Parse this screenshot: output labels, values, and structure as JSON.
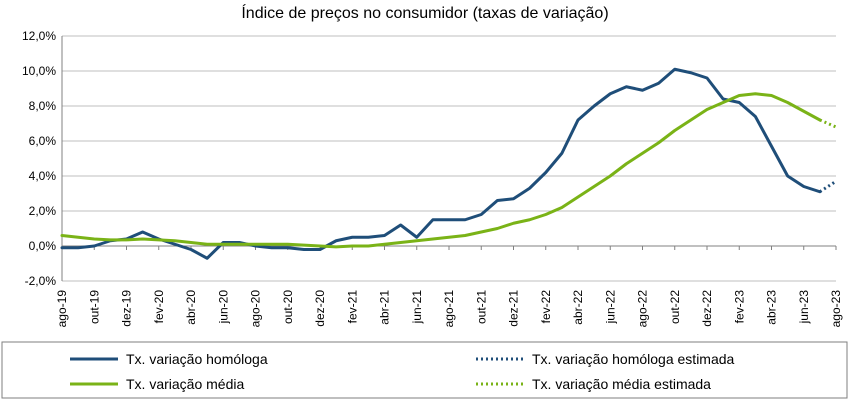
{
  "chart_data": {
    "type": "line",
    "title": "Índice de preços no consumidor  (taxas  de variação)",
    "xlabel": "",
    "ylabel": "",
    "ylim": [
      -2,
      12
    ],
    "y_ticks": [
      -2,
      0,
      2,
      4,
      6,
      8,
      10,
      12
    ],
    "y_tick_labels": [
      "-2,0%",
      "0,0%",
      "2,0%",
      "4,0%",
      "6,0%",
      "8,0%",
      "10,0%",
      "12,0%"
    ],
    "x_tick_labels": [
      "ago-19",
      "out-19",
      "dez-19",
      "fev-20",
      "abr-20",
      "jun-20",
      "ago-20",
      "out-20",
      "dez-20",
      "fev-21",
      "abr-21",
      "jun-21",
      "ago-21",
      "out-21",
      "dez-21",
      "fev-22",
      "abr-22",
      "jun-22",
      "ago-22",
      "out-22",
      "dez-22",
      "fev-23",
      "abr-23",
      "jun-23",
      "ago-23"
    ],
    "months": [
      "ago-19",
      "set-19",
      "out-19",
      "nov-19",
      "dez-19",
      "jan-20",
      "fev-20",
      "mar-20",
      "abr-20",
      "mai-20",
      "jun-20",
      "jul-20",
      "ago-20",
      "set-20",
      "out-20",
      "nov-20",
      "dez-20",
      "jan-21",
      "fev-21",
      "mar-21",
      "abr-21",
      "mai-21",
      "jun-21",
      "jul-21",
      "ago-21",
      "set-21",
      "out-21",
      "nov-21",
      "dez-21",
      "jan-22",
      "fev-22",
      "mar-22",
      "abr-22",
      "mai-22",
      "jun-22",
      "jul-22",
      "ago-22",
      "set-22",
      "out-22",
      "nov-22",
      "dez-22",
      "jan-23",
      "fev-23",
      "mar-23",
      "abr-23",
      "mai-23",
      "jun-23",
      "jul-23",
      "ago-23"
    ],
    "grid": "horizontal",
    "legend_position": "bottom",
    "series": [
      {
        "name": "Tx. variação homóloga",
        "color": "#1F4E79",
        "style": "solid",
        "values": [
          -0.1,
          -0.1,
          0.0,
          0.3,
          0.4,
          0.8,
          0.4,
          0.1,
          -0.2,
          -0.7,
          0.2,
          0.2,
          0.0,
          -0.1,
          -0.1,
          -0.2,
          -0.2,
          0.3,
          0.5,
          0.5,
          0.6,
          1.2,
          0.5,
          1.5,
          1.5,
          1.5,
          1.8,
          2.6,
          2.7,
          3.3,
          4.2,
          5.3,
          7.2,
          8.0,
          8.7,
          9.1,
          8.9,
          9.3,
          10.1,
          9.9,
          9.6,
          8.4,
          8.2,
          7.4,
          5.7,
          4.0,
          3.4,
          3.1,
          null
        ]
      },
      {
        "name": "Tx. variação homóloga estimada",
        "color": "#1F4E79",
        "style": "dotted",
        "values": [
          null,
          null,
          null,
          null,
          null,
          null,
          null,
          null,
          null,
          null,
          null,
          null,
          null,
          null,
          null,
          null,
          null,
          null,
          null,
          null,
          null,
          null,
          null,
          null,
          null,
          null,
          null,
          null,
          null,
          null,
          null,
          null,
          null,
          null,
          null,
          null,
          null,
          null,
          null,
          null,
          null,
          null,
          null,
          null,
          null,
          null,
          null,
          3.1,
          3.7
        ]
      },
      {
        "name": "Tx. variação média",
        "color": "#7AB317",
        "style": "solid",
        "values": [
          0.6,
          0.5,
          0.4,
          0.35,
          0.35,
          0.4,
          0.35,
          0.3,
          0.2,
          0.1,
          0.1,
          0.1,
          0.1,
          0.1,
          0.1,
          0.05,
          0.0,
          -0.05,
          0.0,
          0.0,
          0.1,
          0.2,
          0.3,
          0.4,
          0.5,
          0.6,
          0.8,
          1.0,
          1.3,
          1.5,
          1.8,
          2.2,
          2.8,
          3.4,
          4.0,
          4.7,
          5.3,
          5.9,
          6.6,
          7.2,
          7.8,
          8.2,
          8.6,
          8.7,
          8.6,
          8.2,
          7.7,
          7.2,
          null
        ]
      },
      {
        "name": "Tx. variação média  estimada",
        "color": "#7AB317",
        "style": "dotted",
        "values": [
          null,
          null,
          null,
          null,
          null,
          null,
          null,
          null,
          null,
          null,
          null,
          null,
          null,
          null,
          null,
          null,
          null,
          null,
          null,
          null,
          null,
          null,
          null,
          null,
          null,
          null,
          null,
          null,
          null,
          null,
          null,
          null,
          null,
          null,
          null,
          null,
          null,
          null,
          null,
          null,
          null,
          null,
          null,
          null,
          null,
          null,
          null,
          7.2,
          6.8
        ]
      }
    ]
  }
}
